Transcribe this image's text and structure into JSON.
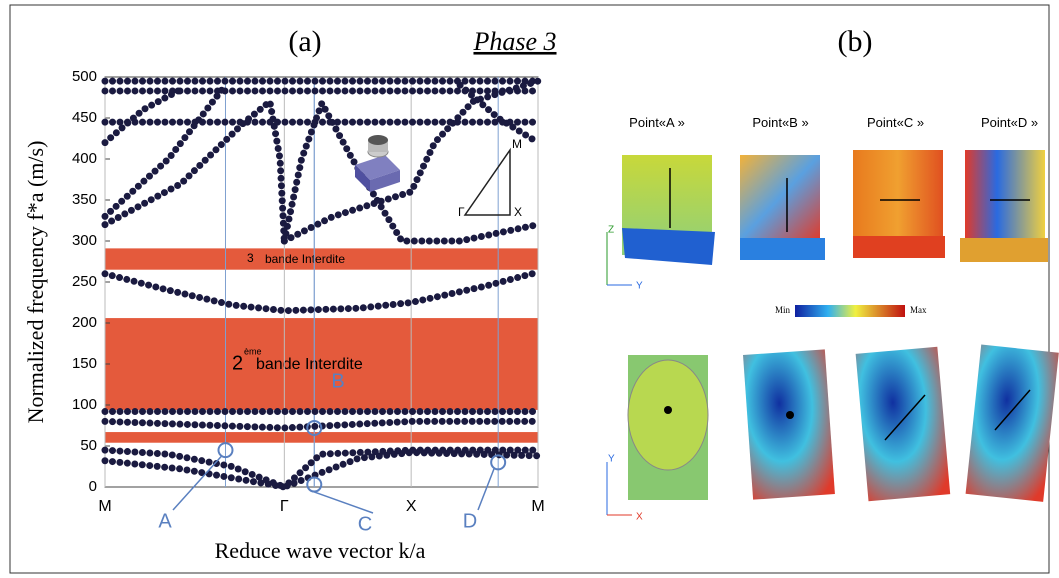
{
  "panel_a_label": "(a)",
  "phase_title": "Phase 3",
  "panel_b_label": "(b)",
  "chart_data": {
    "type": "bands",
    "ylabel": "Normalized frequency f*a (m/s)",
    "xlabel": "Reduce wave vector k/a",
    "xlim": [
      0,
      3.414
    ],
    "ylim": [
      0,
      500
    ],
    "xticks": [
      {
        "value": 0,
        "label": "M"
      },
      {
        "value": 1.414,
        "label": "Γ"
      },
      {
        "value": 2.414,
        "label": "X"
      },
      {
        "value": 3.414,
        "label": "M"
      }
    ],
    "yticks": [
      0,
      50,
      100,
      150,
      200,
      250,
      300,
      350,
      400,
      450,
      500
    ],
    "gap_color": "#e45a3c",
    "gaps": [
      {
        "ymin": 265,
        "ymax": 291,
        "number": "3",
        "text": "bande Interdite"
      },
      {
        "ymin": 94,
        "ymax": 206,
        "number": "2",
        "suffix": "ème",
        "text": "bande Interdite"
      },
      {
        "ymin": 54,
        "ymax": 67
      }
    ],
    "band_color": "#1a1a40",
    "series": [
      {
        "x": [
          0,
          3.414
        ],
        "values": [
          495,
          495
        ]
      },
      {
        "x": [
          0,
          3.414
        ],
        "values": [
          483,
          483
        ]
      },
      {
        "x": [
          0,
          3.414
        ],
        "values": [
          445,
          445
        ]
      },
      {
        "x": [
          0,
          0.5,
          1.0,
          1.414,
          2.0,
          2.414,
          3.0,
          3.414
        ],
        "values": [
          260,
          240,
          222,
          215,
          218,
          225,
          245,
          262
        ]
      },
      {
        "x": [
          0,
          3.414
        ],
        "values": [
          92,
          92
        ]
      },
      {
        "x": [
          0,
          0.7,
          1.414,
          2.414,
          3.414
        ],
        "values": [
          80,
          76,
          72,
          80,
          80
        ]
      },
      {
        "x": [
          0,
          0.5,
          1.0,
          1.414,
          2.0,
          2.414,
          3.414
        ],
        "values": [
          45,
          40,
          25,
          0,
          35,
          42,
          38
        ]
      },
      {
        "x": [
          0,
          0.6,
          1.414,
          1.7,
          2.414,
          3.414
        ],
        "values": [
          32,
          22,
          0,
          40,
          45,
          45
        ]
      },
      {
        "x": [
          0,
          0.6,
          1.1,
          1.3,
          1.38,
          1.414
        ],
        "values": [
          320,
          370,
          445,
          470,
          400,
          300
        ]
      },
      {
        "x": [
          0,
          0.5,
          0.95
        ],
        "values": [
          330,
          400,
          490
        ]
      },
      {
        "x": [
          1.414,
          1.55,
          1.71,
          1.95,
          2.34,
          2.8,
          3.414
        ],
        "values": [
          300,
          400,
          468,
          400,
          300,
          300,
          320
        ]
      },
      {
        "x": [
          1.414,
          1.8,
          2.414,
          2.6,
          2.9,
          3.414
        ],
        "values": [
          300,
          330,
          360,
          420,
          470,
          495
        ]
      },
      {
        "x": [
          0,
          0.3,
          0.6
        ],
        "values": [
          420,
          460,
          485
        ]
      },
      {
        "x": [
          2.8,
          3.1,
          3.414
        ],
        "values": [
          490,
          450,
          420
        ]
      }
    ],
    "annotations": [
      {
        "label": "A",
        "x": 0.95,
        "y": 45
      },
      {
        "label": "B",
        "x": 1.65,
        "y": 72
      },
      {
        "label": "C",
        "x": 1.65,
        "y": 3
      },
      {
        "label": "D",
        "x": 3.1,
        "y": 30
      }
    ],
    "inset_labels": [
      "M",
      "Γ",
      "X"
    ]
  },
  "panel_b": {
    "points": [
      "Point«A »",
      "Point«B »",
      "Point«C »",
      "Point«D »"
    ],
    "colorbar": {
      "min": "Min",
      "max": "Max"
    },
    "axes_top": [
      "Z",
      "Y"
    ],
    "axes_bottom": [
      "Y",
      "X"
    ]
  }
}
